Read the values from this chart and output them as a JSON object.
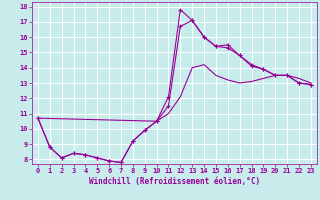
{
  "xlabel": "Windchill (Refroidissement éolien,°C)",
  "background_color": "#c8ecec",
  "line_color": "#990099",
  "grid_color": "#ffffff",
  "xlim": [
    -0.5,
    23.5
  ],
  "ylim": [
    7.7,
    18.3
  ],
  "xticks": [
    0,
    1,
    2,
    3,
    4,
    5,
    6,
    7,
    8,
    9,
    10,
    11,
    12,
    13,
    14,
    15,
    16,
    17,
    18,
    19,
    20,
    21,
    22,
    23
  ],
  "yticks": [
    8,
    9,
    10,
    11,
    12,
    13,
    14,
    15,
    16,
    17,
    18
  ],
  "series1_x": [
    0,
    1,
    2,
    3,
    4,
    5,
    6,
    7,
    8,
    9,
    10,
    11,
    12,
    13,
    14,
    15,
    16,
    17,
    18,
    19,
    20,
    21,
    22,
    23
  ],
  "series1_y": [
    10.7,
    8.8,
    8.1,
    8.4,
    8.3,
    8.1,
    7.9,
    7.8,
    9.2,
    9.9,
    10.5,
    12.1,
    17.8,
    17.1,
    16.0,
    15.4,
    15.5,
    14.8,
    14.1,
    13.9,
    13.5,
    13.5,
    13.0,
    12.9
  ],
  "series2_x": [
    0,
    1,
    2,
    3,
    4,
    5,
    6,
    7,
    8,
    9,
    10,
    11,
    12,
    13,
    14,
    15,
    16,
    17,
    18,
    19,
    20,
    21,
    22,
    23
  ],
  "series2_y": [
    10.7,
    8.8,
    8.1,
    8.4,
    8.3,
    8.1,
    7.9,
    7.8,
    9.2,
    9.9,
    10.5,
    11.5,
    16.7,
    17.1,
    16.0,
    15.4,
    15.3,
    14.8,
    14.2,
    13.9,
    13.5,
    13.5,
    13.0,
    12.9
  ],
  "series3_x": [
    0,
    10,
    11,
    12,
    13,
    14,
    15,
    16,
    17,
    18,
    19,
    20,
    21,
    22,
    23
  ],
  "series3_y": [
    10.7,
    10.5,
    11.0,
    12.1,
    14.0,
    14.2,
    13.5,
    13.2,
    13.0,
    13.1,
    13.3,
    13.5,
    13.5,
    13.3,
    13.0
  ]
}
